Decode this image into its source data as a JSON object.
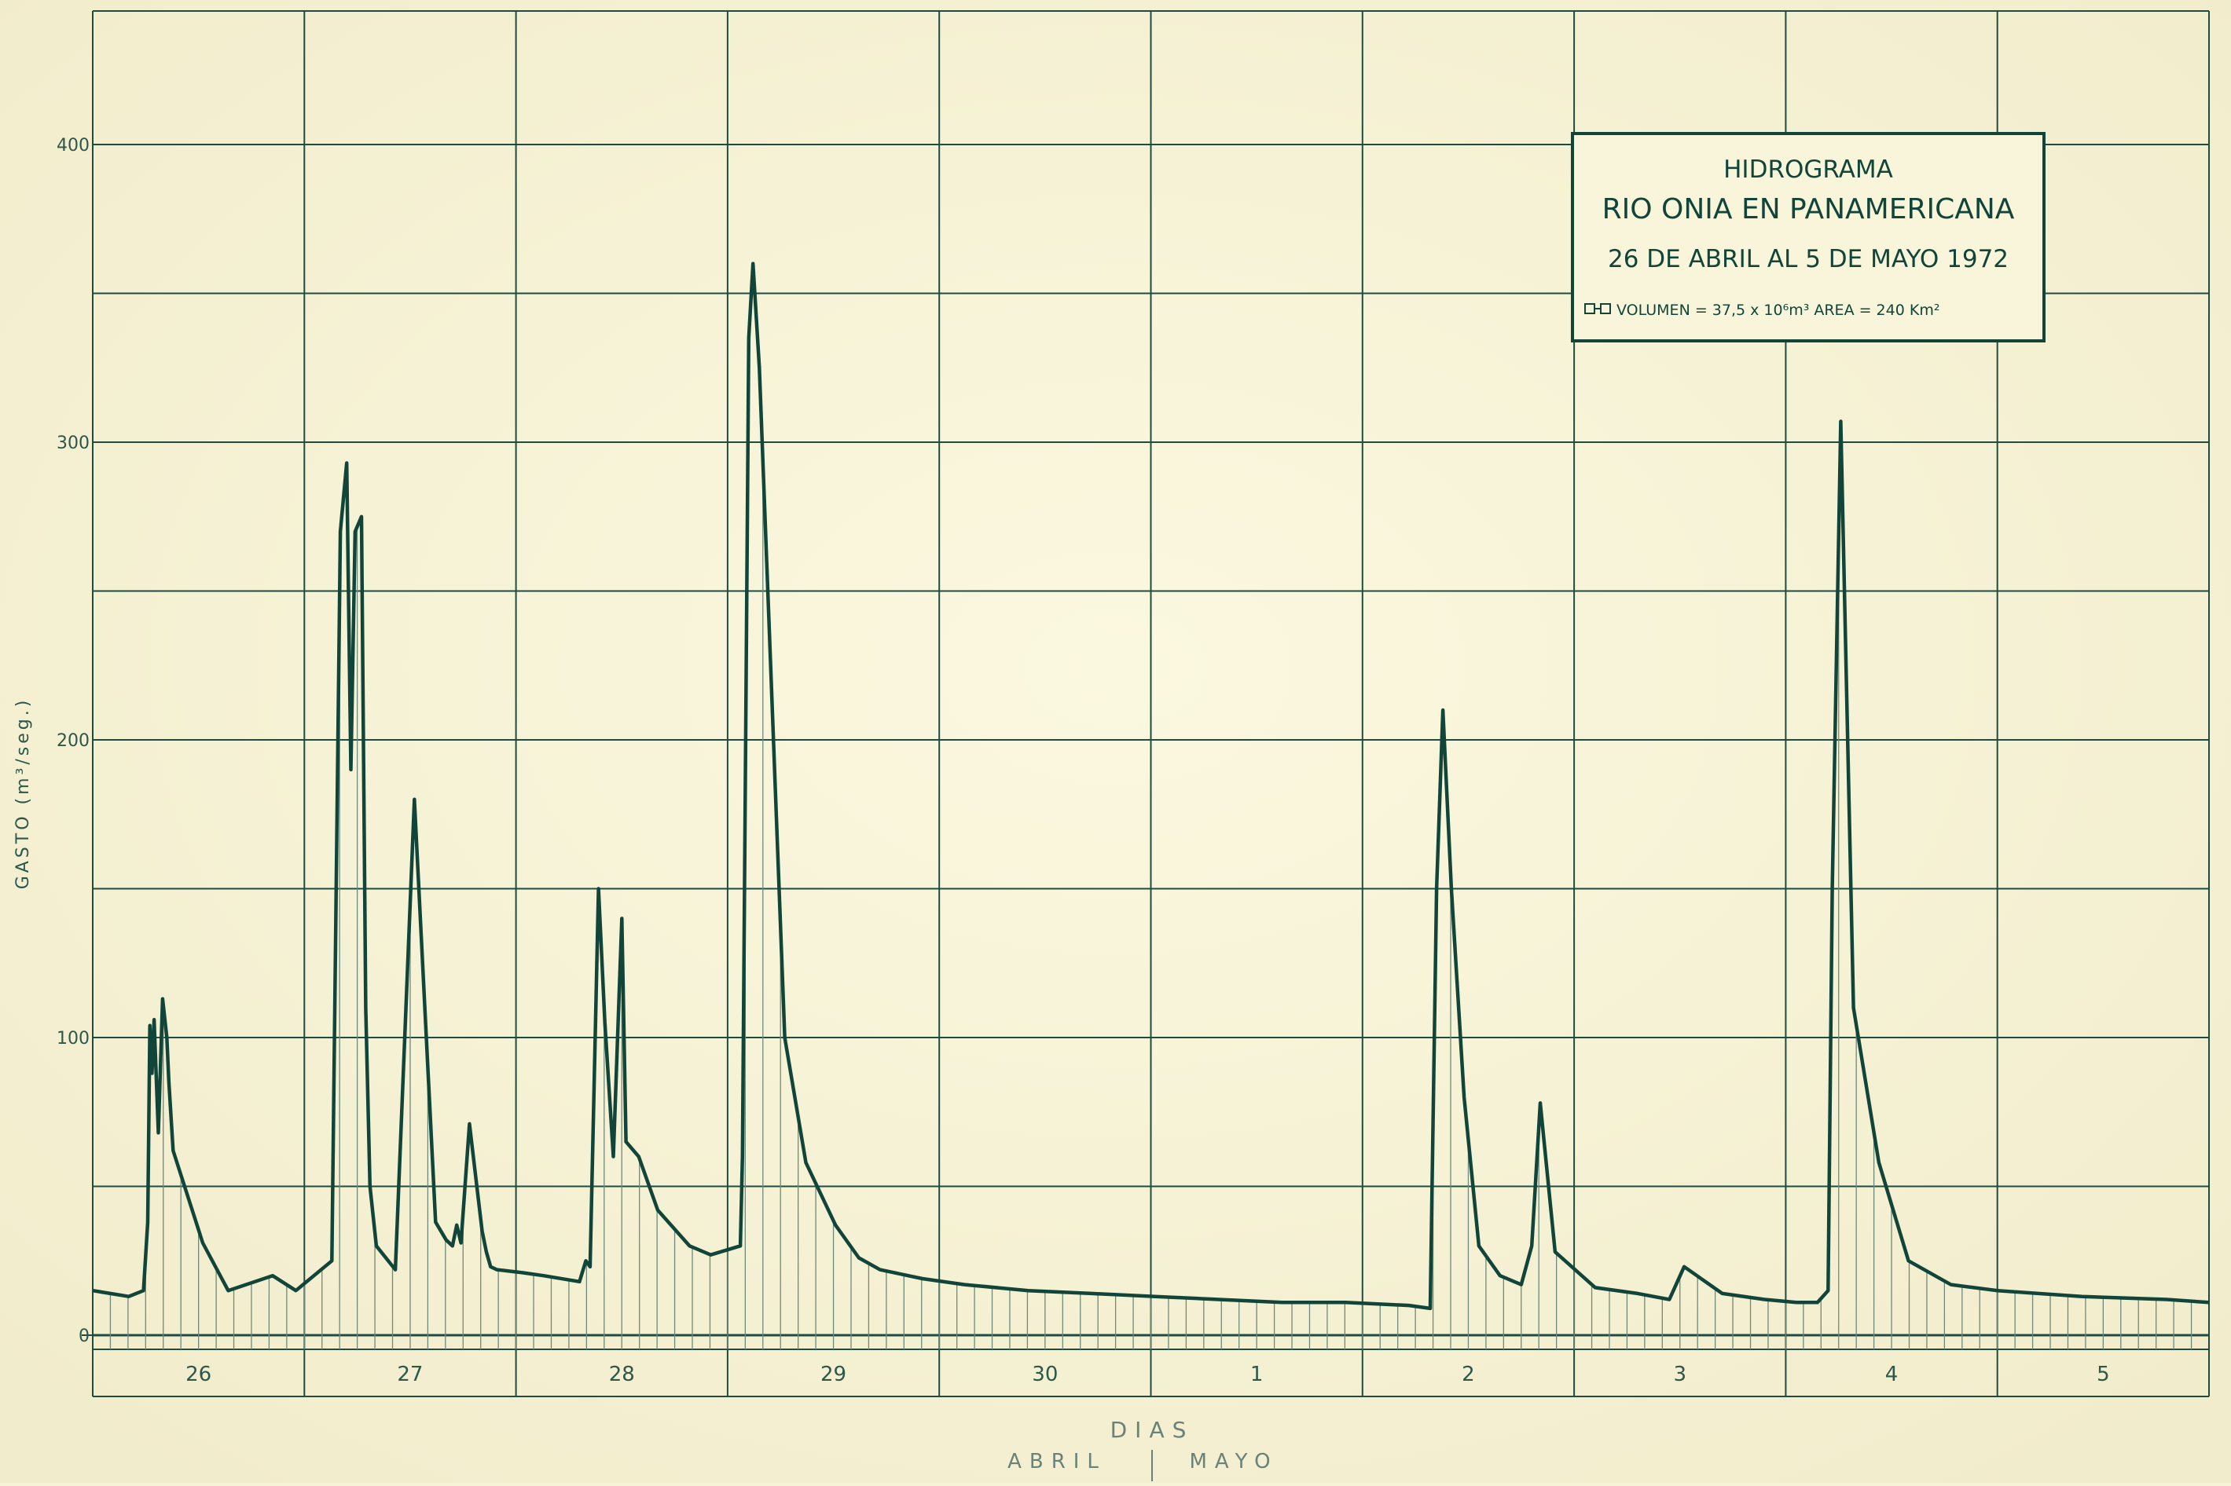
{
  "chart_data": {
    "type": "line",
    "title_lines": [
      "HIDROGRAMA",
      "RIO ONIA EN PANAMERICANA",
      "26 DE ABRIL AL 5 DE MAYO 1972"
    ],
    "legend_text": "VOLUMEN = 37,5 x 10⁶m³  AREA = 240 Km²",
    "ylabel": "GASTO (m³/seg.)",
    "xlabel": "DIAS",
    "month_labels": [
      "ABRIL",
      "MAYO"
    ],
    "day_labels": [
      "26",
      "27",
      "28",
      "29",
      "30",
      "1",
      "2",
      "3",
      "4",
      "5"
    ],
    "y_tick_labels": [
      "0",
      "100",
      "200",
      "300",
      "400"
    ],
    "y_tick_values": [
      0,
      100,
      200,
      300,
      400
    ],
    "ylim": [
      0,
      450
    ],
    "xlim": [
      0,
      10
    ],
    "x_unit": "days from 26 April 00:00",
    "series": [
      {
        "x": [
          0.0,
          0.17,
          0.24,
          0.26,
          0.27,
          0.28,
          0.29,
          0.31,
          0.33,
          0.35,
          0.36,
          0.38,
          0.52,
          0.64,
          0.85,
          0.96,
          1.13,
          1.17,
          1.2,
          1.22,
          1.24,
          1.27,
          1.29,
          1.31,
          1.34,
          1.43,
          1.52,
          1.62,
          1.67,
          1.7,
          1.72,
          1.74,
          1.78,
          1.84,
          1.86,
          1.88,
          1.91,
          2.03,
          2.13,
          2.3,
          2.33,
          2.35,
          2.39,
          2.42,
          2.46,
          2.5,
          2.52,
          2.58,
          2.67,
          2.82,
          2.92,
          3.06,
          3.07,
          3.1,
          3.12,
          3.15,
          3.27,
          3.37,
          3.51,
          3.62,
          3.72,
          3.92,
          4.12,
          4.42,
          4.72,
          5.02,
          5.32,
          5.62,
          5.92,
          6.22,
          6.32,
          6.35,
          6.38,
          6.42,
          6.48,
          6.55,
          6.65,
          6.75,
          6.8,
          6.84,
          6.91,
          7.1,
          7.3,
          7.45,
          7.52,
          7.7,
          7.9,
          8.05,
          8.15,
          8.2,
          8.22,
          8.26,
          8.32,
          8.44,
          8.58,
          8.78,
          9.0,
          9.4,
          9.8,
          10.0
        ],
        "y": [
          15,
          13,
          15,
          38,
          104,
          88,
          106,
          68,
          113,
          100,
          85,
          62,
          31,
          15,
          20,
          15,
          25,
          270,
          293,
          190,
          270,
          275,
          110,
          50,
          30,
          22,
          180,
          38,
          32,
          30,
          37,
          31,
          71,
          35,
          28,
          23,
          22,
          21,
          20,
          18,
          25,
          23,
          150,
          105,
          60,
          140,
          65,
          60,
          42,
          30,
          27,
          30,
          60,
          335,
          360,
          325,
          100,
          58,
          37,
          26,
          22,
          19,
          17,
          15,
          14,
          13,
          12,
          11,
          11,
          10,
          9,
          150,
          210,
          150,
          80,
          30,
          20,
          17,
          30,
          78,
          28,
          16,
          14,
          12,
          23,
          14,
          12,
          11,
          11,
          15,
          150,
          307,
          110,
          58,
          25,
          17,
          15,
          13,
          12,
          11
        ]
      }
    ],
    "grid": true,
    "hatching": "vertical lines under curve",
    "colors": {
      "background": "#f6f3d6",
      "line": "#12453a",
      "grid": "#1e4c40",
      "hatch": "#6f8a7c",
      "text": "#2c574a"
    }
  }
}
